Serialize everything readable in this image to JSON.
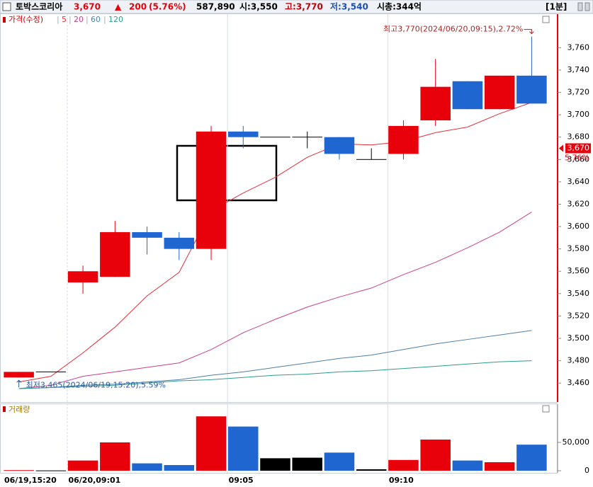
{
  "header": {
    "name": "토박스코리아",
    "price": "3,670",
    "arrow": "▲",
    "change": "200",
    "change_pct": "(5.76%)",
    "volume": "587,890",
    "open": "시:3,550",
    "high": "고:3,770",
    "low": "저:3,540",
    "market_cap": "시총:344억",
    "interval": "[1분]"
  },
  "chart_data": [
    {
      "type": "candlestick",
      "legend_title": "가격(수정)",
      "categories": [
        "06/19,15:20",
        null,
        "06/20,09:01",
        null,
        null,
        null,
        null,
        "09:05",
        null,
        null,
        null,
        null,
        "09:10",
        null,
        null,
        null,
        null
      ],
      "open": [
        3465,
        3470,
        3550,
        3555,
        3595,
        3590,
        3580,
        3685,
        3680,
        3680,
        3680,
        3660,
        3665,
        3695,
        3730,
        3705,
        3735
      ],
      "high": [
        3470,
        3470,
        3565,
        3605,
        3600,
        3595,
        3690,
        3690,
        3680,
        3685,
        3680,
        3670,
        3695,
        3750,
        3730,
        3735,
        3770
      ],
      "low": [
        3465,
        3470,
        3540,
        3555,
        3575,
        3570,
        3570,
        3670,
        3680,
        3670,
        3660,
        3660,
        3660,
        3690,
        3705,
        3705,
        3710
      ],
      "close": [
        3470,
        3470,
        3560,
        3595,
        3590,
        3580,
        3685,
        3680,
        3680,
        3680,
        3665,
        3660,
        3690,
        3725,
        3705,
        3735,
        3710
      ],
      "up_color": "#e8000b",
      "down_color": "#1f66d1",
      "flat_color": "#000000",
      "series": [
        {
          "name": "5",
          "color": "#e0303a",
          "values": [
            3461,
            3466,
            3487,
            3510,
            3538,
            3559,
            3614,
            3630,
            3644,
            3662,
            3674,
            3673,
            3676,
            3684,
            3689,
            3701,
            3711
          ]
        },
        {
          "name": "20",
          "color": "#c8408c",
          "values": [
            3455,
            3458,
            3466,
            3470,
            3474,
            3478,
            3490,
            3505,
            3517,
            3528,
            3537,
            3545,
            3557,
            3568,
            3581,
            3595,
            3613
          ]
        },
        {
          "name": "60",
          "color": "#4d7fa6",
          "values": [
            3455,
            3456,
            3458,
            3459,
            3461,
            3463,
            3467,
            3470,
            3474,
            3478,
            3482,
            3485,
            3490,
            3495,
            3499,
            3503,
            3507
          ]
        },
        {
          "name": "120",
          "color": "#2e9c8c",
          "values": [
            3455,
            3456,
            3457,
            3458,
            3460,
            3462,
            3463,
            3465,
            3467,
            3468,
            3470,
            3471,
            3473,
            3475,
            3477,
            3479,
            3480
          ]
        }
      ],
      "ylim": [
        3443,
        3790
      ],
      "yticks": [
        {
          "value": 3460,
          "label": "3,460"
        },
        {
          "value": 3480,
          "label": "3,480"
        },
        {
          "value": 3500,
          "label": "3,500"
        },
        {
          "value": 3520,
          "label": "3,520"
        },
        {
          "value": 3540,
          "label": "3,540"
        },
        {
          "value": 3560,
          "label": "3,560"
        },
        {
          "value": 3580,
          "label": "3,580"
        },
        {
          "value": 3600,
          "label": "3,600"
        },
        {
          "value": 3620,
          "label": "3,620"
        },
        {
          "value": 3640,
          "label": "3,640"
        },
        {
          "value": 3660,
          "label": "3,660"
        },
        {
          "value": 3680,
          "label": "3,680"
        },
        {
          "value": 3700,
          "label": "3,700"
        },
        {
          "value": 3720,
          "label": "3,720"
        },
        {
          "value": 3740,
          "label": "3,740"
        },
        {
          "value": 3760,
          "label": "3,760"
        }
      ],
      "current": {
        "value": 3670,
        "label": "3,670",
        "change": "5.76%"
      },
      "annotations": {
        "high": "최고3,770(2024/06/20,09:15),2.72%",
        "low": "최저3,465(2024/06/19,15:20),5.59%"
      },
      "grid": "x"
    },
    {
      "type": "bar",
      "title": "거래량",
      "values": [
        1000,
        500,
        18000,
        50000,
        13000,
        10000,
        96000,
        78000,
        22000,
        23000,
        32000,
        2500,
        19000,
        55000,
        18000,
        15000,
        46000
      ],
      "colors": [
        "#e8000b",
        "#000000",
        "#e8000b",
        "#e8000b",
        "#1f66d1",
        "#1f66d1",
        "#e8000b",
        "#1f66d1",
        "#000000",
        "#000000",
        "#1f66d1",
        "#000000",
        "#e8000b",
        "#e8000b",
        "#1f66d1",
        "#e8000b",
        "#1f66d1"
      ],
      "ylim": [
        0,
        110000
      ],
      "yticks": [
        {
          "value": 50000,
          "label": "50,000"
        },
        0
      ]
    }
  ]
}
